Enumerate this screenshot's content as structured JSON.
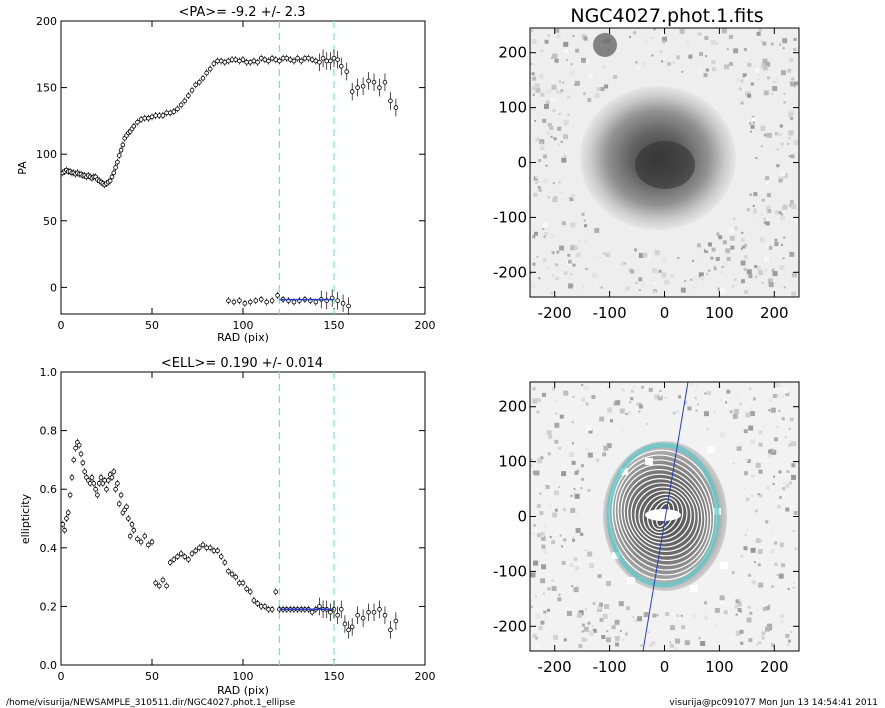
{
  "footer": {
    "left": "/home/visurija/NEWSAMPLE_310511.dir/NGC4027.phot.1_ellipse",
    "right": "visurija@pc091077  Mon Jun 13 14:54:41 2011"
  },
  "image_title": "NGC4027.phot.1.fits",
  "image_axes": {
    "ticks": [
      -200,
      -100,
      0,
      100,
      200
    ],
    "xlim": [
      -245,
      245
    ],
    "ylim": [
      -245,
      245
    ]
  },
  "chart_data": [
    {
      "type": "scatter",
      "title": "<PA>=  -9.2 +/-   2.3",
      "xlabel": "RAD (pix)",
      "ylabel": "PA",
      "xlim": [
        0,
        200
      ],
      "ylim": [
        -20,
        200
      ],
      "xticks": [
        0,
        50,
        100,
        150,
        200
      ],
      "yticks": [
        0,
        50,
        100,
        150,
        200
      ],
      "vlines": [
        120,
        150
      ],
      "fit": {
        "x": [
          120,
          150
        ],
        "y": -9.2
      },
      "series": [
        {
          "x": [
            1,
            2,
            3,
            4,
            5,
            6,
            7,
            8,
            9,
            10,
            11,
            12,
            13,
            14,
            15,
            16,
            17,
            18,
            19,
            20,
            21,
            22,
            23,
            24,
            25,
            26,
            27,
            28,
            29,
            30,
            31,
            32,
            33,
            34,
            35,
            36,
            37,
            38,
            39,
            40,
            42,
            44,
            46,
            48,
            50,
            52,
            54,
            56,
            58,
            60,
            62,
            64,
            66,
            68,
            70,
            72,
            74,
            76,
            78,
            80,
            82,
            84,
            86,
            88,
            90,
            92,
            94,
            96,
            98,
            100,
            102,
            104,
            106,
            108,
            110,
            112,
            114,
            116,
            118,
            120,
            122,
            124,
            126,
            128,
            130,
            132,
            134,
            136,
            138,
            140,
            142,
            144,
            146,
            148,
            150,
            152,
            154
          ],
          "y": [
            86,
            87,
            88,
            87,
            87,
            86,
            86,
            85,
            86,
            85,
            85,
            84,
            84,
            83,
            84,
            83,
            82,
            83,
            83,
            81,
            80,
            79,
            78,
            77,
            78,
            79,
            80,
            83,
            86,
            90,
            94,
            99,
            103,
            107,
            112,
            114,
            116,
            117,
            119,
            121,
            124,
            126,
            127,
            127,
            128,
            129,
            129,
            129,
            131,
            131,
            132,
            134,
            137,
            140,
            144,
            148,
            152,
            154,
            157,
            161,
            164,
            168,
            170,
            170,
            169,
            170,
            171,
            171,
            170,
            171,
            169,
            169,
            170,
            169,
            172,
            171,
            170,
            172,
            171,
            170,
            172,
            172,
            171,
            170,
            172,
            170,
            172,
            172,
            171,
            170,
            169,
            172,
            170,
            170,
            172,
            171,
            166
          ]
        },
        {
          "x": [
            92,
            95,
            98,
            101,
            104,
            107,
            110,
            113,
            116,
            119,
            122,
            125,
            128,
            131,
            134,
            137,
            140,
            143,
            146,
            149,
            152,
            155,
            158
          ],
          "y": [
            -10,
            -11,
            -10,
            -12,
            -11,
            -10,
            -9,
            -11,
            -10,
            -6,
            -9,
            -10,
            -11,
            -10,
            -9,
            -10,
            -11,
            -9,
            -10,
            -8,
            -10,
            -12,
            -14
          ]
        },
        {
          "x": [
            157,
            160,
            163,
            166,
            169,
            172,
            175,
            178,
            181,
            184
          ],
          "y": [
            162,
            147,
            150,
            151,
            155,
            154,
            150,
            154,
            140,
            135
          ]
        }
      ]
    },
    {
      "type": "scatter",
      "title": "<ELL>= 0.190 +/-  0.014",
      "xlabel": "RAD (pix)",
      "ylabel": "ellipticity",
      "xlim": [
        0,
        200
      ],
      "ylim": [
        0.0,
        1.0
      ],
      "xticks": [
        0,
        50,
        100,
        150,
        200
      ],
      "yticks": [
        0.0,
        0.2,
        0.4,
        0.6,
        0.8,
        1.0
      ],
      "vlines": [
        120,
        150
      ],
      "fit": {
        "x": [
          120,
          150
        ],
        "y": 0.19
      },
      "series": [
        {
          "x": [
            1,
            2,
            3,
            4,
            5,
            6,
            7,
            8,
            9,
            10,
            11,
            12,
            13,
            14,
            15,
            16,
            17,
            18,
            19,
            20,
            21,
            22,
            23,
            24,
            25,
            26,
            27,
            28,
            29,
            30,
            31,
            32,
            33,
            34,
            35,
            36,
            37,
            38,
            39,
            40,
            42,
            44,
            46,
            48,
            50,
            52,
            54,
            56,
            58,
            60,
            62,
            64,
            66,
            68,
            70,
            72,
            74,
            76,
            78,
            80,
            82,
            84,
            86,
            88,
            90,
            92,
            94,
            96,
            98,
            100,
            102,
            104,
            106,
            108,
            110,
            112,
            114,
            116,
            118,
            120,
            122,
            124,
            126,
            128,
            130,
            132,
            134,
            136,
            138,
            140,
            142,
            144,
            146,
            148,
            150,
            152,
            154,
            156,
            158,
            160,
            163,
            166,
            169,
            172,
            175,
            178,
            181,
            184
          ],
          "y": [
            0.48,
            0.46,
            0.5,
            0.52,
            0.58,
            0.64,
            0.7,
            0.74,
            0.76,
            0.75,
            0.72,
            0.69,
            0.66,
            0.64,
            0.63,
            0.62,
            0.64,
            0.62,
            0.6,
            0.58,
            0.62,
            0.64,
            0.62,
            0.63,
            0.6,
            0.63,
            0.65,
            0.64,
            0.66,
            0.6,
            0.62,
            0.55,
            0.58,
            0.52,
            0.53,
            0.54,
            0.5,
            0.44,
            0.48,
            0.46,
            0.43,
            0.42,
            0.44,
            0.41,
            0.42,
            0.28,
            0.27,
            0.29,
            0.27,
            0.35,
            0.36,
            0.37,
            0.38,
            0.37,
            0.36,
            0.38,
            0.39,
            0.4,
            0.41,
            0.4,
            0.4,
            0.39,
            0.39,
            0.37,
            0.35,
            0.32,
            0.31,
            0.3,
            0.28,
            0.28,
            0.26,
            0.25,
            0.22,
            0.21,
            0.2,
            0.2,
            0.19,
            0.19,
            0.25,
            0.19,
            0.19,
            0.19,
            0.19,
            0.19,
            0.19,
            0.19,
            0.19,
            0.19,
            0.18,
            0.19,
            0.2,
            0.19,
            0.19,
            0.18,
            0.19,
            0.17,
            0.19,
            0.14,
            0.12,
            0.13,
            0.17,
            0.16,
            0.18,
            0.18,
            0.19,
            0.17,
            0.12,
            0.15
          ]
        }
      ]
    }
  ]
}
